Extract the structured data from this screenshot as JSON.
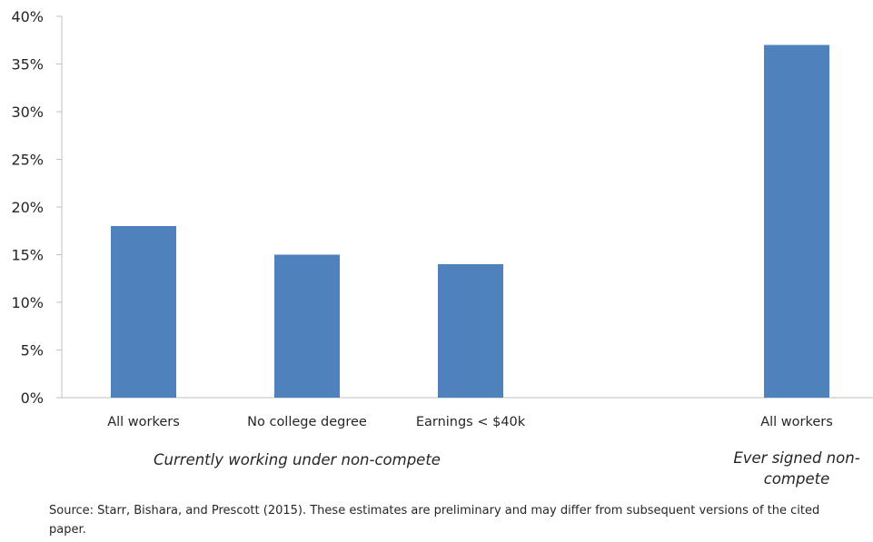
{
  "chart_data": {
    "type": "bar",
    "categories": [
      "All workers",
      "No college degree",
      "Earnings < $40k",
      "All workers"
    ],
    "values": [
      18,
      15,
      14,
      37
    ],
    "unit": "%",
    "ylim": [
      0,
      40
    ],
    "yticks": [
      "0%",
      "5%",
      "10%",
      "15%",
      "20%",
      "25%",
      "30%",
      "35%",
      "40%"
    ],
    "groups": [
      {
        "label": "Currently working under non-compete",
        "categories": [
          0,
          1,
          2
        ]
      },
      {
        "label": "Ever signed non-compete",
        "label_lines": [
          "Ever signed non-",
          "compete"
        ],
        "categories": [
          3
        ]
      }
    ],
    "bar_color": "#4F81BD",
    "grid": false,
    "legend": "none"
  },
  "source_note": "Source: Starr, Bishara, and Prescott (2015). These estimates are preliminary and may differ from subsequent versions of the cited paper."
}
